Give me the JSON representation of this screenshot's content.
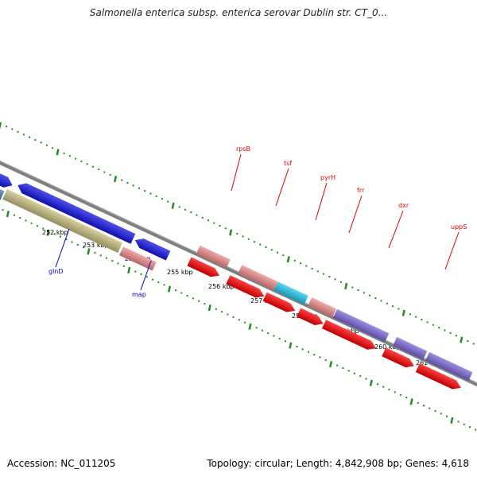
{
  "title": "Salmonella enterica subsp. enterica serovar Dublin str. CT_0...",
  "accession_text": "Accession: NC_011205",
  "summary_text": "Topology: circular; Length: 4,842,908 bp; Genes: 4,618",
  "colors": {
    "background": "#ffffff",
    "backbone": "#808080",
    "tick": "#228b22",
    "label_red": "#dd0000",
    "label_blue": "#0000cc",
    "gene_blue": "#1414e6",
    "gene_steel": "#4a7db0",
    "gene_olive": "#c8c080",
    "gene_pink": "#f08c8c",
    "gene_red": "#ff0000",
    "gene_cyan": "#20c8f0",
    "gene_purple": "#7b68d8"
  },
  "scale": {
    "unit": "kbp",
    "labels": [
      "252 kbp",
      "253 kbp",
      "254 kbp",
      "255 kbp",
      "256 kbp",
      "257 kbp",
      "258 kbp",
      "259 kbp",
      "260 kbp",
      "261 kbp"
    ]
  },
  "gene_labels_top": [
    {
      "name": "rpsB",
      "color": "red"
    },
    {
      "name": "tsf",
      "color": "red"
    },
    {
      "name": "pyrH",
      "color": "red"
    },
    {
      "name": "frr",
      "color": "red"
    },
    {
      "name": "dxr",
      "color": "red"
    },
    {
      "name": "uppS",
      "color": "red"
    }
  ],
  "gene_labels_bottom": [
    {
      "name": "glnD",
      "color": "blue"
    },
    {
      "name": "map",
      "color": "blue"
    }
  ],
  "features": [
    {
      "track": "forward",
      "color": "blue"
    },
    {
      "track": "forward",
      "color": "blue"
    },
    {
      "track": "forward",
      "color": "steel"
    },
    {
      "track": "forward",
      "color": "olive"
    },
    {
      "track": "forward",
      "color": "blue"
    },
    {
      "track": "forward",
      "color": "pink"
    },
    {
      "track": "forward",
      "color": "pink"
    },
    {
      "track": "forward",
      "color": "red"
    },
    {
      "track": "forward",
      "color": "pink"
    },
    {
      "track": "forward",
      "color": "red"
    },
    {
      "track": "forward",
      "color": "cyan"
    },
    {
      "track": "forward",
      "color": "red"
    },
    {
      "track": "forward",
      "color": "pink"
    },
    {
      "track": "forward",
      "color": "red"
    },
    {
      "track": "forward",
      "color": "purple"
    },
    {
      "track": "forward",
      "color": "red"
    },
    {
      "track": "forward",
      "color": "purple"
    },
    {
      "track": "forward",
      "color": "red"
    },
    {
      "track": "forward",
      "color": "purple"
    },
    {
      "track": "forward",
      "color": "red"
    }
  ]
}
